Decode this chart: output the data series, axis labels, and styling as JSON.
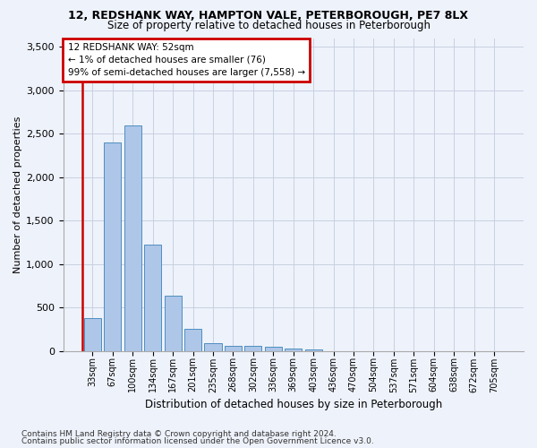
{
  "title1": "12, REDSHANK WAY, HAMPTON VALE, PETERBOROUGH, PE7 8LX",
  "title2": "Size of property relative to detached houses in Peterborough",
  "xlabel": "Distribution of detached houses by size in Peterborough",
  "ylabel": "Number of detached properties",
  "footnote1": "Contains HM Land Registry data © Crown copyright and database right 2024.",
  "footnote2": "Contains public sector information licensed under the Open Government Licence v3.0.",
  "annotation_line1": "12 REDSHANK WAY: 52sqm",
  "annotation_line2": "← 1% of detached houses are smaller (76)",
  "annotation_line3": "99% of semi-detached houses are larger (7,558) →",
  "bar_color": "#aec6e8",
  "bar_edge_color": "#4e8fc0",
  "highlight_color": "#cc0000",
  "background_color": "#eef2fb",
  "grid_color": "#c8d0e0",
  "categories": [
    "33sqm",
    "67sqm",
    "100sqm",
    "134sqm",
    "167sqm",
    "201sqm",
    "235sqm",
    "268sqm",
    "302sqm",
    "336sqm",
    "369sqm",
    "403sqm",
    "436sqm",
    "470sqm",
    "504sqm",
    "537sqm",
    "571sqm",
    "604sqm",
    "638sqm",
    "672sqm",
    "705sqm"
  ],
  "values": [
    380,
    2400,
    2600,
    1230,
    640,
    260,
    95,
    65,
    60,
    50,
    35,
    25,
    0,
    0,
    0,
    0,
    0,
    0,
    0,
    0,
    0
  ],
  "ylim": [
    0,
    3600
  ],
  "yticks": [
    0,
    500,
    1000,
    1500,
    2000,
    2500,
    3000,
    3500
  ]
}
